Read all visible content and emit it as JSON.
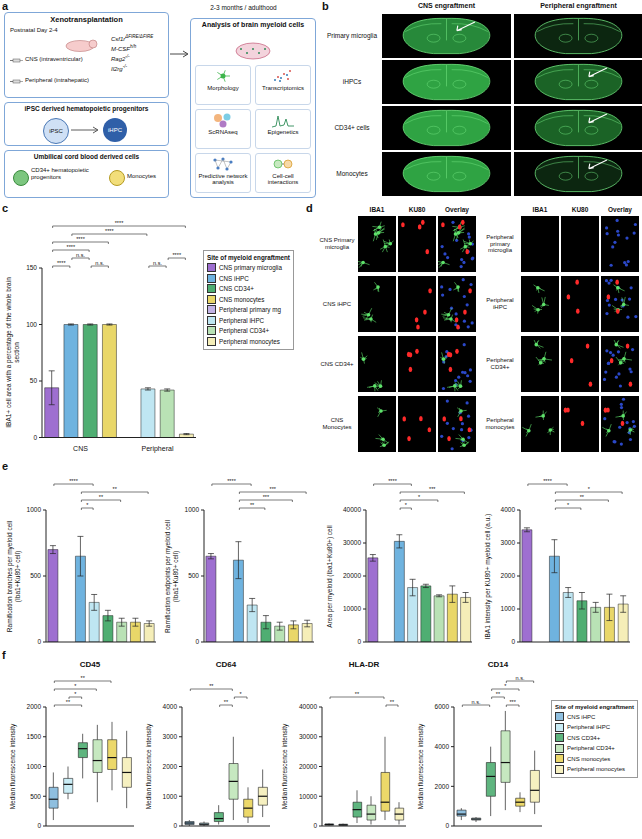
{
  "panel_labels": [
    "a",
    "b",
    "c",
    "d",
    "e",
    "f"
  ],
  "panel_a": {
    "xenotransplantation": {
      "title": "Xenotransplantation",
      "age": "Postnatal Day 2-4",
      "routes": [
        "CNS (intraventricular)",
        "Peripheral (intrahepatic)"
      ],
      "genotype": [
        {
          "name": "Csf1r",
          "sup": "ΔFIRE/ΔFIRE"
        },
        {
          "name": "M-CSF",
          "sup": "h/h"
        },
        {
          "name": "Rag2",
          "sup": "-/-"
        },
        {
          "name": "Il2rg",
          "sup": "-/-"
        }
      ]
    },
    "ipsc": {
      "title": "iPSC derived hematopoietic progenitors",
      "from": "iPSC",
      "to": "iHPC"
    },
    "cord_blood": {
      "title": "Umbilical cord blood derived cells",
      "cells": [
        "CD34+ hematopoietic progenitors",
        "Monocytes"
      ]
    },
    "timepoint": "2-3 months / adulthood",
    "analysis": {
      "title": "Analysis of brain myeloid cells",
      "methods": [
        "Morphology",
        "Transcriptomics",
        "ScRNAseq",
        "Epigenetics",
        "Predictive network analysis",
        "Cell-cell interactions"
      ]
    }
  },
  "panel_b": {
    "columns": [
      "CNS engraftment",
      "Peripheral engraftment"
    ],
    "rows": [
      "Primary microglia",
      "iHPCs",
      "CD34+ cells",
      "Monocytes"
    ]
  },
  "panel_d": {
    "columns": [
      "IBA1",
      "KU80",
      "Overlay"
    ],
    "blocks": [
      [
        "CNS Primary microglia",
        "CNS iHPC",
        "CNS CD34+",
        "CNS Monocytes"
      ],
      [
        "Peripheral primary microglia",
        "Peripheral iHPC",
        "Peripheral CD34+",
        "Peripheral monocytes"
      ]
    ]
  },
  "chart_data": [
    {
      "type": "bar",
      "y_label": "IBA1+ cell area with a percentage of the whole brain section",
      "categories": [
        "CNS primary microglia",
        "CNS iHPC",
        "CNS CD34+",
        "CNS monocytes",
        "Peripheral primary mg",
        "Peripheral iHPC",
        "Peripheral CD34+",
        "Peripheral monocytes"
      ],
      "values": [
        44,
        100,
        100,
        100,
        0,
        43,
        42,
        3
      ],
      "errors": [
        15,
        0.5,
        0.5,
        0.5,
        0,
        1,
        1,
        0.5
      ],
      "colors": [
        "#9e6fd0",
        "#6fb3df",
        "#4fae72",
        "#e9d769",
        "#c2b3e6",
        "#bfe6f2",
        "#b9e2b5",
        "#f5eeb8"
      ],
      "ylim": [
        0,
        150
      ],
      "yticks": [
        0,
        50,
        100,
        150
      ],
      "groups": [
        {
          "label": "CNS",
          "from": 0,
          "to": 3
        },
        {
          "label": "Peripheral",
          "from": 4,
          "to": 7
        }
      ],
      "tick_labels": "y",
      "legend": "right",
      "legend_title": "Site of myeloid engraftment",
      "significance": [
        {
          "from": 0,
          "to": 1,
          "label": "****"
        },
        {
          "from": 1,
          "to": 2,
          "label": "n.s."
        },
        {
          "from": 2,
          "to": 3,
          "label": "n.s."
        },
        {
          "from": 5,
          "to": 6,
          "label": "n.s."
        },
        {
          "from": 6,
          "to": 7,
          "label": "****"
        },
        {
          "from": 0,
          "to": 2,
          "label": "****"
        },
        {
          "from": 0,
          "to": 3,
          "label": "****"
        },
        {
          "from": 1,
          "to": 5,
          "label": "****"
        },
        {
          "from": 0,
          "to": 7,
          "label": "****"
        }
      ]
    },
    {
      "type": "bar",
      "y_label": "Ramification branches per myeloid cell (Iba1+Ku80+ cell)",
      "categories": [
        "CNS primary microglia",
        "Peripheral primary mg",
        "CNS iHPC",
        "Peripheral iHPC",
        "CNS CD34+",
        "Peripheral CD34+",
        "CNS monocytes",
        "Peripheral monocytes"
      ],
      "values": [
        700,
        0,
        650,
        300,
        200,
        150,
        150,
        140
      ],
      "errors": [
        30,
        0,
        150,
        60,
        40,
        30,
        30,
        20
      ],
      "colors": [
        "#9e6fd0",
        "#c2b3e6",
        "#6fb3df",
        "#bfe6f2",
        "#4fae72",
        "#b9e2b5",
        "#e9d769",
        "#f5eeb8"
      ],
      "ylim": [
        0,
        1000
      ],
      "yticks": [
        0,
        500,
        1000
      ],
      "tick_labels": "y",
      "significance": [
        {
          "from": 2,
          "to": 3,
          "label": "*"
        },
        {
          "from": 2,
          "to": 5,
          "label": "**"
        },
        {
          "from": 2,
          "to": 7,
          "label": "**"
        },
        {
          "from": 0,
          "to": 3,
          "label": "****"
        }
      ]
    },
    {
      "type": "bar",
      "y_label": "Ramification endpoints per myeloid cell (Iba1+Ku80+ cell)",
      "categories": [
        "CNS primary microglia",
        "Peripheral primary mg",
        "CNS iHPC",
        "Peripheral iHPC",
        "CNS CD34+",
        "Peripheral CD34+",
        "CNS monocytes",
        "Peripheral monocytes"
      ],
      "values": [
        650,
        0,
        620,
        280,
        150,
        120,
        130,
        140
      ],
      "errors": [
        20,
        0,
        140,
        50,
        50,
        30,
        30,
        25
      ],
      "colors": [
        "#9e6fd0",
        "#c2b3e6",
        "#6fb3df",
        "#bfe6f2",
        "#4fae72",
        "#b9e2b5",
        "#e9d769",
        "#f5eeb8"
      ],
      "ylim": [
        0,
        1000
      ],
      "yticks": [
        0,
        500,
        1000
      ],
      "tick_labels": "y",
      "significance": [
        {
          "from": 2,
          "to": 4,
          "label": "**"
        },
        {
          "from": 2,
          "to": 6,
          "label": "***"
        },
        {
          "from": 2,
          "to": 7,
          "label": "***"
        },
        {
          "from": 0,
          "to": 3,
          "label": "****"
        }
      ]
    },
    {
      "type": "bar",
      "y_label": "Area per myeloid (Iba1+Ku80+) cell",
      "categories": [
        "CNS primary microglia",
        "Peripheral primary mg",
        "CNS iHPC",
        "Peripheral iHPC",
        "CNS CD34+",
        "Peripheral CD34+",
        "CNS monocytes",
        "Peripheral monocytes"
      ],
      "values": [
        25500,
        0,
        30500,
        16500,
        17000,
        14000,
        14500,
        13500
      ],
      "errors": [
        1000,
        0,
        2000,
        2500,
        500,
        300,
        2500,
        1500
      ],
      "colors": [
        "#9e6fd0",
        "#c2b3e6",
        "#6fb3df",
        "#bfe6f2",
        "#4fae72",
        "#b9e2b5",
        "#e9d769",
        "#f5eeb8"
      ],
      "ylim": [
        0,
        40000
      ],
      "yticks": [
        0,
        10000,
        20000,
        30000,
        40000
      ],
      "tick_labels": "y",
      "significance": [
        {
          "from": 2,
          "to": 3,
          "label": "*"
        },
        {
          "from": 2,
          "to": 5,
          "label": "*"
        },
        {
          "from": 2,
          "to": 7,
          "label": "***"
        },
        {
          "from": 0,
          "to": 3,
          "label": "****"
        }
      ]
    },
    {
      "type": "bar",
      "y_label": "IBA1 intensity per KU80+ myeloid cell (a.u.)",
      "categories": [
        "CNS primary microglia",
        "Peripheral primary mg",
        "CNS iHPC",
        "Peripheral iHPC",
        "CNS CD34+",
        "Peripheral CD34+",
        "CNS monocytes",
        "Peripheral monocytes"
      ],
      "values": [
        3400,
        0,
        2600,
        1500,
        1250,
        1050,
        1050,
        1150
      ],
      "errors": [
        60,
        0,
        500,
        150,
        250,
        150,
        400,
        250
      ],
      "colors": [
        "#9e6fd0",
        "#c2b3e6",
        "#6fb3df",
        "#bfe6f2",
        "#4fae72",
        "#b9e2b5",
        "#e9d769",
        "#f5eeb8"
      ],
      "ylim": [
        0,
        4000
      ],
      "yticks": [
        0,
        1000,
        2000,
        3000,
        4000
      ],
      "tick_labels": "y",
      "significance": [
        {
          "from": 2,
          "to": 4,
          "label": "*"
        },
        {
          "from": 2,
          "to": 6,
          "label": "**"
        },
        {
          "from": 2,
          "to": 7,
          "label": "*"
        },
        {
          "from": 0,
          "to": 3,
          "label": "****"
        }
      ]
    },
    {
      "type": "box",
      "title": "CD45",
      "y_label": "Median fluorescence intensity",
      "categories": [
        "CNS iHPC",
        "Peripheral iHPC",
        "CNS CD34+",
        "Peripheral CD34+",
        "CNS monocytes",
        "Peripheral monocytes"
      ],
      "colors": [
        "#8fbfdf",
        "#c9ecf5",
        "#5fb57f",
        "#c6e8c0",
        "#ecd86a",
        "#f6f0c0"
      ],
      "min": [
        100,
        450,
        800,
        400,
        600,
        300
      ],
      "q1": [
        300,
        550,
        1150,
        900,
        950,
        650
      ],
      "median": [
        450,
        700,
        1300,
        1100,
        1150,
        900
      ],
      "q3": [
        650,
        800,
        1400,
        1450,
        1450,
        1150
      ],
      "max": [
        900,
        1000,
        1550,
        1700,
        1750,
        1600
      ],
      "ylim": [
        0,
        2000
      ],
      "yticks": [
        0,
        500,
        1000,
        1500,
        2000
      ],
      "tick_labels": "y",
      "significance": [
        {
          "from": 0,
          "to": 2,
          "label": "**"
        },
        {
          "from": 1,
          "to": 2,
          "label": "*"
        },
        {
          "from": 0,
          "to": 3,
          "label": "*"
        },
        {
          "from": 0,
          "to": 4,
          "label": "**"
        }
      ]
    },
    {
      "type": "box",
      "title": "CD64",
      "y_label": "Median fluorescence intensity",
      "categories": [
        "CNS iHPC",
        "Peripheral iHPC",
        "CNS CD34+",
        "Peripheral CD34+",
        "CNS monocytes",
        "Peripheral monocytes"
      ],
      "colors": [
        "#8fbfdf",
        "#c9ecf5",
        "#5fb57f",
        "#c6e8c0",
        "#ecd86a",
        "#f6f0c0"
      ],
      "min": [
        0,
        0,
        50,
        200,
        100,
        300
      ],
      "q1": [
        50,
        30,
        150,
        900,
        300,
        700
      ],
      "median": [
        100,
        60,
        250,
        1500,
        600,
        1000
      ],
      "q3": [
        150,
        100,
        450,
        2100,
        900,
        1300
      ],
      "max": [
        200,
        150,
        700,
        3000,
        1300,
        1900
      ],
      "ylim": [
        0,
        4000
      ],
      "yticks": [
        0,
        1000,
        2000,
        3000,
        4000
      ],
      "tick_labels": "y",
      "significance": [
        {
          "from": 2,
          "to": 3,
          "label": "**"
        },
        {
          "from": 3,
          "to": 4,
          "label": "*"
        },
        {
          "from": 0,
          "to": 3,
          "label": "**"
        }
      ]
    },
    {
      "type": "box",
      "title": "HLA-DR",
      "y_label": "Median fluorescence intensity",
      "categories": [
        "CNS iHPC",
        "Peripheral iHPC",
        "CNS CD34+",
        "Peripheral CD34+",
        "CNS monocytes",
        "Peripheral monocytes"
      ],
      "colors": [
        "#8fbfdf",
        "#c9ecf5",
        "#5fb57f",
        "#c6e8c0",
        "#ecd86a",
        "#f6f0c0"
      ],
      "min": [
        100,
        100,
        1000,
        500,
        2000,
        500
      ],
      "q1": [
        300,
        200,
        3000,
        2000,
        5000,
        2000
      ],
      "median": [
        500,
        400,
        5500,
        4000,
        8000,
        4000
      ],
      "q3": [
        700,
        600,
        8000,
        7000,
        18000,
        6000
      ],
      "max": [
        900,
        800,
        12000,
        10000,
        30000,
        8000
      ],
      "ylim": [
        0,
        40000
      ],
      "yticks": [
        0,
        10000,
        20000,
        30000,
        40000
      ],
      "tick_labels": "y",
      "significance": [
        {
          "from": 4,
          "to": 5,
          "label": "**"
        },
        {
          "from": 0,
          "to": 4,
          "label": "**"
        }
      ]
    },
    {
      "type": "box",
      "title": "CD14",
      "y_label": "Median fluorescence intensity",
      "categories": [
        "CNS iHPC",
        "Peripheral iHPC",
        "CNS CD34+",
        "Peripheral CD34+",
        "CNS monocytes",
        "Peripheral monocytes"
      ],
      "colors": [
        "#8fbfdf",
        "#c9ecf5",
        "#5fb57f",
        "#c6e8c0",
        "#ecd86a",
        "#f6f0c0"
      ],
      "min": [
        300,
        200,
        500,
        800,
        700,
        600
      ],
      "q1": [
        500,
        300,
        1500,
        2200,
        1000,
        1200
      ],
      "median": [
        600,
        350,
        2500,
        3200,
        1200,
        1800
      ],
      "q3": [
        800,
        400,
        3200,
        4800,
        1400,
        2800
      ],
      "max": [
        900,
        450,
        4000,
        5800,
        1700,
        3800
      ],
      "ylim": [
        0,
        6000
      ],
      "yticks": [
        0,
        2000,
        4000,
        6000
      ],
      "tick_labels": "y",
      "legend": "right",
      "legend_title": "Site of myeloid engraftment",
      "significance": [
        {
          "from": 0,
          "to": 2,
          "label": "n.s."
        },
        {
          "from": 2,
          "to": 3,
          "label": "**"
        },
        {
          "from": 3,
          "to": 4,
          "label": "***"
        },
        {
          "from": 2,
          "to": 4,
          "label": "*"
        },
        {
          "from": 3,
          "to": 5,
          "label": "n.s."
        }
      ]
    }
  ]
}
